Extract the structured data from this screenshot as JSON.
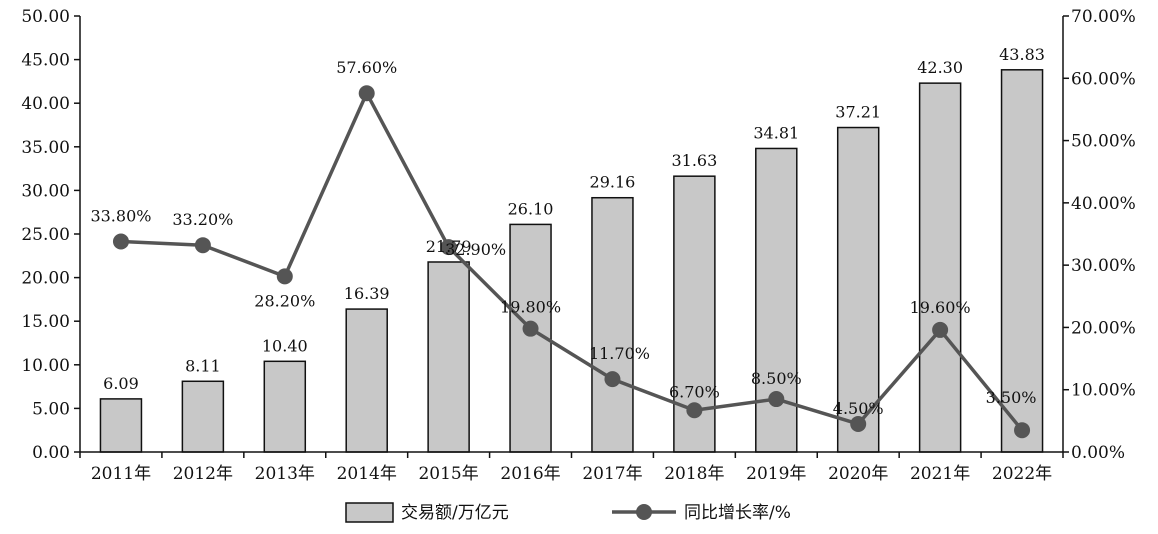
{
  "chart_data": {
    "type": "bar",
    "categories": [
      "2011年",
      "2012年",
      "2013年",
      "2014年",
      "2015年",
      "2016年",
      "2017年",
      "2018年",
      "2019年",
      "2020年",
      "2021年",
      "2022年"
    ],
    "series": [
      {
        "name": "交易额/万亿元",
        "type": "bar",
        "axis": "left",
        "values": [
          6.09,
          8.11,
          10.4,
          16.39,
          21.79,
          26.1,
          29.16,
          31.63,
          34.81,
          37.21,
          42.3,
          43.83
        ],
        "labels": [
          "6.09",
          "8.11",
          "10.40",
          "16.39",
          "21.79",
          "26.10",
          "29.16",
          "31.63",
          "34.81",
          "37.21",
          "42.30",
          "43.83"
        ],
        "color": "#c8c8c8"
      },
      {
        "name": "同比增长率/%",
        "type": "line",
        "axis": "right",
        "values": [
          33.8,
          33.2,
          28.2,
          57.6,
          32.9,
          19.8,
          11.7,
          6.7,
          8.5,
          4.5,
          19.6,
          3.5
        ],
        "labels": [
          "33.80%",
          "33.20%",
          "28.20%",
          "57.60%",
          "32.90%",
          "19.80%",
          "11.70%",
          "6.70%",
          "8.50%",
          "4.50%",
          "19.60%",
          "3.50%"
        ],
        "color": "#555555"
      }
    ],
    "y_left": {
      "range": [
        0,
        50
      ],
      "ticks": [
        "0.00",
        "5.00",
        "10.00",
        "15.00",
        "20.00",
        "25.00",
        "30.00",
        "35.00",
        "40.00",
        "45.00",
        "50.00"
      ]
    },
    "y_right": {
      "range": [
        0,
        70
      ],
      "ticks": [
        "0.00%",
        "10.00%",
        "20.00%",
        "30.00%",
        "40.00%",
        "50.00%",
        "60.00%",
        "70.00%"
      ]
    },
    "grid": false,
    "legend_position": "bottom-center"
  }
}
